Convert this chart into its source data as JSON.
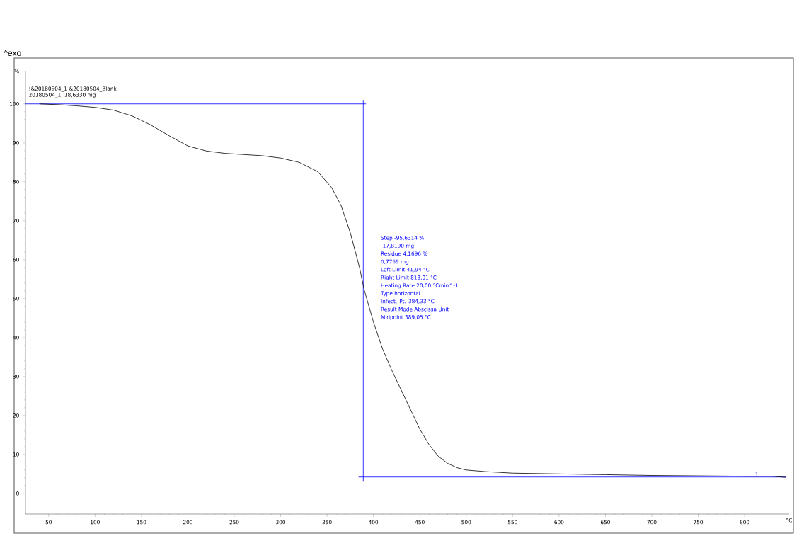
{
  "chart_data": {
    "type": "line",
    "title": "^exo",
    "xlabel": "°C",
    "ylabel": "%",
    "xlim": [
      25,
      848
    ],
    "ylim": [
      -5.3,
      108.5
    ],
    "xticks": [
      50,
      100,
      150,
      200,
      250,
      300,
      350,
      400,
      450,
      500,
      550,
      600,
      650,
      700,
      750,
      800
    ],
    "yticks": [
      0,
      10,
      20,
      30,
      40,
      50,
      60,
      70,
      80,
      90,
      100
    ],
    "grid": false,
    "marker": "none",
    "line_style": "solid",
    "series": [
      {
        "color": "#000000",
        "x": [
          40,
          60,
          80,
          100,
          120,
          140,
          160,
          180,
          200,
          220,
          240,
          260,
          280,
          300,
          320,
          340,
          355,
          365,
          375,
          385,
          390,
          400,
          410,
          420,
          430,
          440,
          450,
          460,
          470,
          480,
          490,
          500,
          520,
          550,
          600,
          650,
          700,
          750,
          800,
          830,
          845
        ],
        "values": [
          100,
          99.8,
          99.5,
          99.1,
          98.4,
          96.9,
          94.6,
          91.8,
          89.2,
          87.9,
          87.3,
          87.0,
          86.7,
          86.1,
          85.0,
          82.6,
          78.5,
          74,
          67,
          58,
          52.3,
          44,
          37,
          31.5,
          26.5,
          21.5,
          16.5,
          12.5,
          9.5,
          7.7,
          6.6,
          6.0,
          5.6,
          5.2,
          5.0,
          4.8,
          4.6,
          4.5,
          4.4,
          4.4,
          4.1
        ]
      },
      {
        "color": "#0000ff",
        "x": [
          25,
          392
        ],
        "values": [
          100,
          100
        ]
      },
      {
        "color": "#0000ff",
        "x": [
          389.05,
          389.05
        ],
        "values": [
          101,
          3
        ]
      },
      {
        "color": "#0000ff",
        "x": [
          384,
          845
        ],
        "values": [
          4.2,
          4.2
        ]
      }
    ],
    "annotations": [
      "!&20180504_1-&20180504_Blank",
      "20180504_1, 18,6330 mg",
      "Step -95,6314 %",
      "-17,8190 mg",
      "Residue 4,1696 %",
      "0,7769 mg",
      "Left Limit 41,94 °C",
      "Right Limit 813,01 °C",
      "Heating Rate 20,00 °Cmin^-1",
      "Type horizontal",
      "Infect. Pt. 384,33 °C",
      "Result Mode Abscissa Unit",
      "Midpoint 389,05 °C",
      {
        "text": "1",
        "x": 813.01,
        "y": 4.2
      }
    ]
  }
}
